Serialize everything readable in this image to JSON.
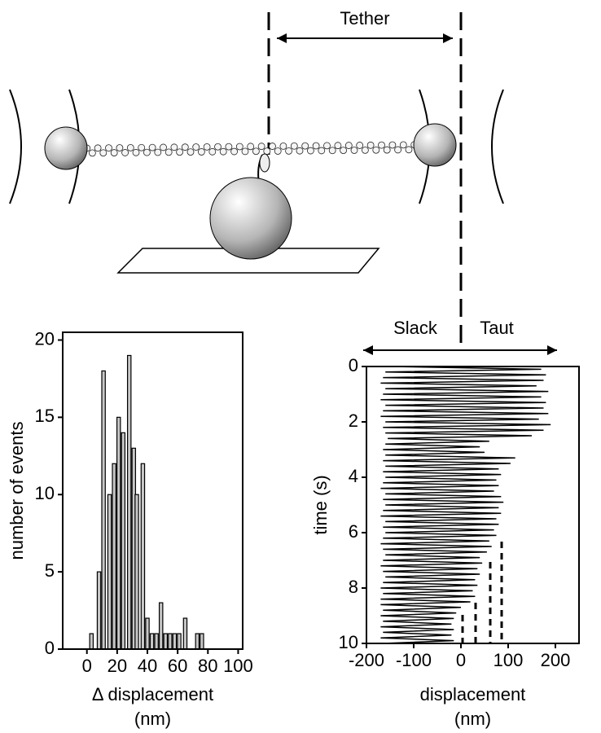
{
  "diagram": {
    "tether_label": "Tether",
    "slack_label": "Slack",
    "taut_label": "Taut"
  },
  "chart_data": [
    {
      "type": "bar",
      "x": [
        3,
        8,
        11,
        15,
        18,
        21,
        24,
        28,
        31,
        33,
        37,
        40,
        43,
        46,
        49,
        52,
        55,
        58,
        61,
        65,
        73,
        76
      ],
      "values": [
        1,
        5,
        18,
        10,
        12,
        15,
        14,
        19,
        13,
        10,
        12,
        2,
        1,
        1,
        3,
        1,
        1,
        1,
        1,
        2,
        1,
        1
      ],
      "color": "#c8c8c8",
      "xlim": [
        -16,
        103
      ],
      "ylim": [
        0,
        20.5
      ],
      "xticks": [
        0,
        20,
        40,
        60,
        80,
        100
      ],
      "yticks": [
        0,
        5,
        10,
        15,
        20
      ],
      "xlabel": [
        "Δ displacement",
        "(nm)"
      ],
      "ylabel": "number of events"
    },
    {
      "type": "trace",
      "y": [
        0,
        0.1,
        0.2,
        0.3,
        0.4,
        0.5,
        0.6,
        0.7,
        0.8,
        0.9,
        1,
        1.1,
        1.2,
        1.3,
        1.4,
        1.5,
        1.6,
        1.7,
        1.8,
        1.9,
        2,
        2.1,
        2.2,
        2.3,
        2.4,
        2.5,
        2.6,
        2.7,
        2.8,
        2.9,
        3,
        3.1,
        3.2,
        3.3,
        3.4,
        3.5,
        3.6,
        3.7,
        3.8,
        3.9,
        4,
        4.1,
        4.2,
        4.3,
        4.4,
        4.5,
        4.6,
        4.7,
        4.8,
        4.9,
        5,
        5.1,
        5.2,
        5.3,
        5.4,
        5.5,
        5.6,
        5.7,
        5.8,
        5.9,
        6,
        6.1,
        6.2,
        6.3,
        6.4,
        6.5,
        6.6,
        6.7,
        6.8,
        6.9,
        7,
        7.1,
        7.2,
        7.3,
        7.4,
        7.5,
        7.6,
        7.7,
        7.8,
        7.9,
        8,
        8.1,
        8.2,
        8.3,
        8.4,
        8.5,
        8.6,
        8.7,
        8.8,
        8.9,
        9,
        9.1,
        9.2,
        9.3,
        9.4,
        9.5,
        9.6,
        9.7,
        9.8,
        9.9,
        10
      ],
      "x": [
        -150,
        170,
        -160,
        180,
        -165,
        175,
        -170,
        160,
        -160,
        185,
        -165,
        170,
        -170,
        180,
        -160,
        175,
        -165,
        185,
        -170,
        165,
        -160,
        190,
        -165,
        175,
        -160,
        150,
        -155,
        60,
        -160,
        40,
        -165,
        50,
        -160,
        115,
        -165,
        105,
        -160,
        80,
        -165,
        85,
        -160,
        75,
        -165,
        80,
        -170,
        70,
        -160,
        85,
        -165,
        90,
        -160,
        80,
        -165,
        85,
        -170,
        75,
        -160,
        80,
        -165,
        70,
        -160,
        75,
        -165,
        60,
        -170,
        65,
        -165,
        55,
        -160,
        40,
        -165,
        45,
        -170,
        35,
        -165,
        40,
        -160,
        30,
        -165,
        35,
        -170,
        25,
        -165,
        30,
        -170,
        20,
        -170,
        0,
        -165,
        -10,
        -170,
        -15,
        -165,
        -20,
        -170,
        -15,
        -165,
        -20,
        -170,
        -15,
        -165
      ],
      "color": "#000000",
      "xlim": [
        -200,
        250
      ],
      "ylim": [
        10,
        0
      ],
      "xticks": [
        -200,
        -100,
        0,
        100,
        200
      ],
      "yticks": [
        0,
        2,
        4,
        6,
        8,
        10
      ],
      "xlabel": [
        "displacement",
        "(nm)"
      ],
      "ylabel": "time (s)"
    }
  ]
}
